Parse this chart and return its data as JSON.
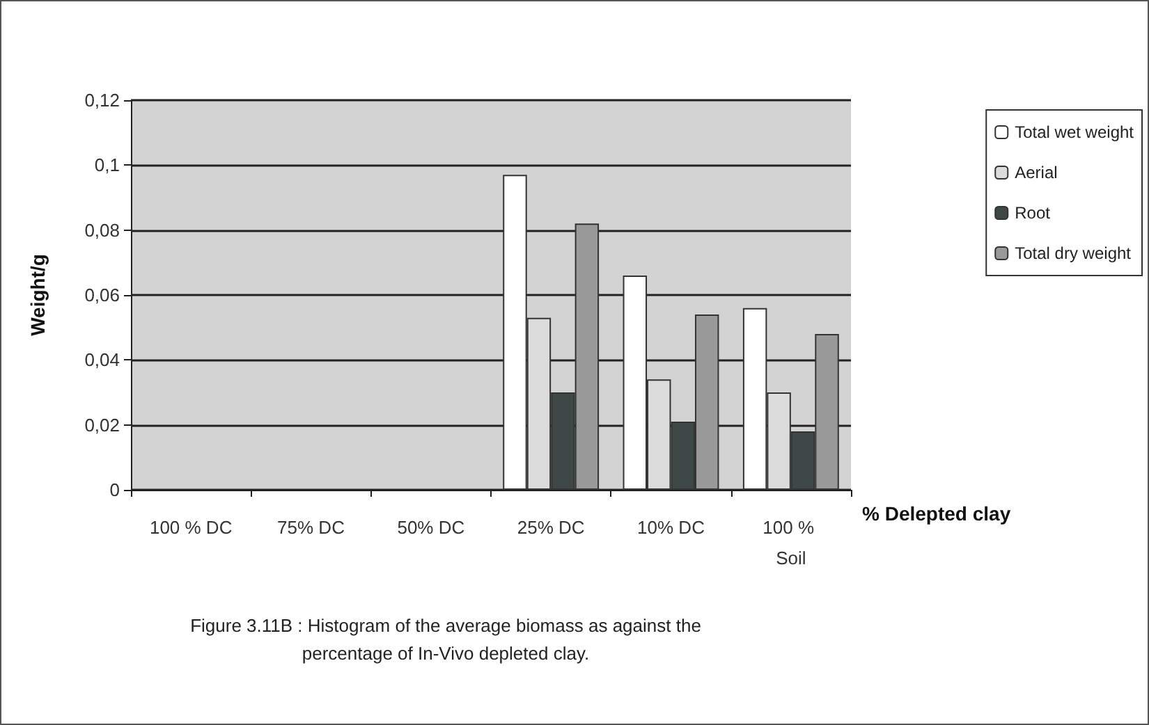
{
  "chart_data": {
    "type": "bar",
    "categories": [
      "100 % DC",
      "75% DC",
      "50% DC",
      "25% DC",
      "10% DC",
      "100 % Soil"
    ],
    "series": [
      {
        "name": "Total wet weight",
        "color": "#ffffff",
        "values": [
          null,
          null,
          null,
          0.097,
          0.066,
          0.056
        ]
      },
      {
        "name": "Aerial",
        "color": "#dcdcdc",
        "values": [
          null,
          null,
          null,
          0.053,
          0.034,
          0.03
        ]
      },
      {
        "name": "Root",
        "color": "#3e4846",
        "values": [
          null,
          null,
          null,
          0.03,
          0.021,
          0.018
        ]
      },
      {
        "name": "Total dry weight",
        "color": "#999999",
        "values": [
          null,
          null,
          null,
          0.082,
          0.054,
          0.048
        ]
      }
    ],
    "xlabel": "% Delepted clay",
    "ylabel": "Weight/g",
    "ylim": [
      0,
      0.12
    ],
    "yticks": [
      0,
      {
        "value": 0.02,
        "label": "0,02"
      },
      {
        "value": 0.04,
        "label": "0,04"
      },
      {
        "value": 0.06,
        "label": "0,06"
      },
      {
        "value": 0.08,
        "label": "0,08"
      },
      {
        "value": 0.1,
        "label": "0,1"
      },
      {
        "value": 0.12,
        "label": "0,12"
      }
    ],
    "grid": "y",
    "legend": "right",
    "annotations": [
      "Figure 3.11B :  Histogram of the average biomass as against the percentage of In-Vivo depleted clay."
    ]
  }
}
